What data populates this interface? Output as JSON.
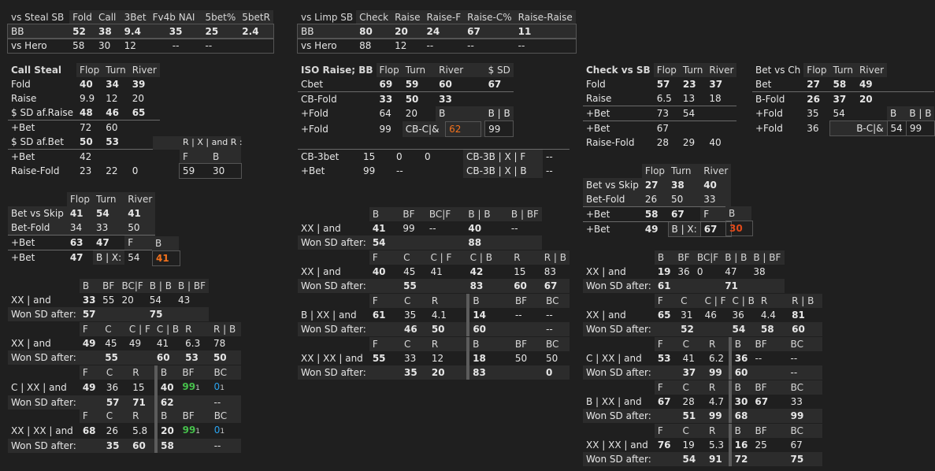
{
  "top_left": {
    "headers": [
      "vs Steal SB",
      "Fold",
      "Call",
      "3Bet",
      "Fv4b NAI",
      "5bet%",
      "5betR"
    ],
    "bb": {
      "label": "BB",
      "fold": "52",
      "call": "38",
      "threebet": "9.4",
      "fv4b": "35",
      "fivebet": "25",
      "fivebetr": "2.4"
    },
    "hero": {
      "label": "vs Hero",
      "fold": "58",
      "call": "30",
      "threebet": "12",
      "fv4b": "--",
      "fivebet": "--"
    }
  },
  "top_mid": {
    "headers": [
      "vs Limp SB",
      "Check",
      "Raise",
      "Raise-F",
      "Raise-C%",
      "Raise-Raise"
    ],
    "bb": {
      "label": "BB",
      "check": "80",
      "raise": "20",
      "raisef": "24",
      "raisec": "67",
      "raiseraise": "11"
    },
    "hero": {
      "label": "vs Hero",
      "check": "88",
      "raise": "12",
      "raisef": "--",
      "raisec": "--",
      "raiseraise": "--"
    }
  },
  "call_steal": {
    "title": "Call Steal",
    "h": [
      "Flop",
      "Turn",
      "River"
    ],
    "fold": {
      "l": "Fold",
      "v": [
        "40",
        "34",
        "39"
      ]
    },
    "raise": {
      "l": "Raise",
      "v": [
        "9.9",
        "12",
        "20"
      ]
    },
    "sd_raise": {
      "l": "$ SD af.Raise",
      "v": [
        "48",
        "46",
        "65"
      ]
    },
    "bet1": {
      "l": "+Bet",
      "v": [
        "72",
        "60"
      ]
    },
    "sd_bet": {
      "l": "$ SD af.Bet",
      "v": [
        "50",
        "53"
      ]
    },
    "rx": {
      "l": "R | X | and R :",
      "h": [
        "F",
        "B"
      ],
      "v": [
        "59",
        "30"
      ]
    },
    "bet2": {
      "l": "+Bet",
      "v": [
        "42"
      ]
    },
    "raise_fold": {
      "l": "Raise-Fold",
      "v": [
        "23",
        "22",
        "0"
      ]
    }
  },
  "skip_left": {
    "h": [
      "Flop",
      "Turn",
      "River"
    ],
    "bvs": {
      "l": "Bet vs Skip",
      "v": [
        "41",
        "54",
        "41"
      ]
    },
    "bf": {
      "l": "Bet-Fold",
      "v": [
        "34",
        "33",
        "50"
      ]
    },
    "bet1": {
      "l": "+Bet",
      "v": [
        "63",
        "47"
      ],
      "h": [
        "F",
        "B"
      ]
    },
    "bet2": {
      "l": "+Bet",
      "v": [
        "47"
      ],
      "bx": "B | X:",
      "bxv": [
        "54",
        "41"
      ]
    }
  },
  "xx_left": {
    "g1": {
      "h": [
        "B",
        "BF",
        "BC|F",
        "B | B",
        "B | BF"
      ],
      "l1": "XX | and",
      "l2": "Won SD after:",
      "r1": [
        "33",
        "55",
        "20",
        "54",
        "43"
      ],
      "r2": [
        "57",
        "",
        "",
        "75"
      ]
    },
    "g2": {
      "h": [
        "F",
        "C",
        "C | F",
        "C | B",
        "R",
        "R | B"
      ],
      "l1": "XX | and",
      "l2": "Won SD after:",
      "r1": [
        "49",
        "45",
        "49",
        "41",
        "6.3",
        "78"
      ],
      "r2": [
        "",
        "55",
        "",
        "60",
        "53",
        "50"
      ]
    },
    "g3": {
      "h": [
        "F",
        "C",
        "R",
        "B",
        "BF",
        "BC"
      ],
      "l1": "C | XX | and",
      "l2": "Won SD after:",
      "r1": [
        "49",
        "36",
        "15",
        "40",
        "99",
        "0"
      ],
      "s1": [
        "1",
        "1"
      ],
      "r2": [
        "",
        "57",
        "71",
        "62",
        "",
        "--"
      ]
    },
    "g4": {
      "h": [
        "F",
        "C",
        "R",
        "B",
        "BF",
        "BC"
      ],
      "l1": "XX | XX | and",
      "l2": "Won SD after:",
      "r1": [
        "68",
        "26",
        "5.8",
        "20",
        "99",
        "0"
      ],
      "s1": [
        "1",
        "1"
      ],
      "r2": [
        "",
        "35",
        "60",
        "58",
        "",
        "--"
      ]
    }
  },
  "iso": {
    "title": "ISO Raise; BB",
    "h": [
      "Flop",
      "Turn",
      "River",
      "$ SD"
    ],
    "cbet": {
      "l": "Cbet",
      "v": [
        "69",
        "59",
        "60",
        "67"
      ]
    },
    "cbf": {
      "l": "CB-Fold",
      "v": [
        "33",
        "50",
        "33"
      ]
    },
    "fold1": {
      "l": "+Fold",
      "v": [
        "64",
        "20"
      ],
      "h": [
        "B",
        "B | B"
      ]
    },
    "fold2": {
      "l": "+Fold",
      "v": [
        "99"
      ],
      "cbl": "CB-C|&",
      "cbv": [
        "62",
        "99"
      ]
    },
    "cb3": {
      "l": "CB-3bet",
      "v": [
        "15",
        "0",
        "0"
      ],
      "r1l": "CB-3B | X | F",
      "r1v": "--"
    },
    "bet": {
      "l": "+Bet",
      "v": [
        "99",
        "--"
      ],
      "r2l": "CB-3B | X | B",
      "r2v": "--"
    }
  },
  "xx_mid": {
    "g1": {
      "h": [
        "B",
        "BF",
        "BC|F",
        "B | B",
        "B | BF"
      ],
      "l1": "XX | and",
      "l2": "Won SD after:",
      "r1": [
        "41",
        "99",
        "--",
        "40",
        "--"
      ],
      "r2": [
        "54",
        "",
        "",
        "88"
      ]
    },
    "g2": {
      "h": [
        "F",
        "C",
        "C | F",
        "C | B",
        "R",
        "R | B"
      ],
      "l1": "XX | and",
      "l2": "Won SD after:",
      "r1": [
        "40",
        "45",
        "41",
        "42",
        "15",
        "83"
      ],
      "r2": [
        "",
        "55",
        "",
        "83",
        "60",
        "67"
      ]
    },
    "g3": {
      "h": [
        "F",
        "C",
        "R",
        "B",
        "BF",
        "BC"
      ],
      "l1": "B | XX | and",
      "l2": "Won SD after:",
      "r1": [
        "61",
        "35",
        "4.1",
        "14",
        "--",
        "--"
      ],
      "r2": [
        "",
        "46",
        "50",
        "60",
        "",
        "--"
      ]
    },
    "g4": {
      "h": [
        "F",
        "C",
        "R",
        "B",
        "BF",
        "BC"
      ],
      "l1": "XX | XX | and",
      "l2": "Won SD after:",
      "r1": [
        "55",
        "33",
        "12",
        "18",
        "50",
        "50"
      ],
      "r2": [
        "",
        "35",
        "20",
        "83",
        "",
        "0"
      ]
    }
  },
  "check_sb": {
    "title": "Check vs SB",
    "h": [
      "Flop",
      "Turn",
      "River"
    ],
    "fold": {
      "l": "Fold",
      "v": [
        "57",
        "23",
        "37"
      ]
    },
    "raise": {
      "l": "Raise",
      "v": [
        "6.5",
        "13",
        "18"
      ]
    },
    "bet1": {
      "l": "+Bet",
      "v": [
        "73",
        "54"
      ]
    },
    "bet2": {
      "l": "+Bet",
      "v": [
        "67"
      ]
    },
    "rf": {
      "l": "Raise-Fold",
      "v": [
        "28",
        "29",
        "40"
      ]
    }
  },
  "bet_ch": {
    "h": [
      "Bet vs Ch",
      "Flop",
      "Turn",
      "River"
    ],
    "bet": {
      "l": "Bet",
      "v": [
        "27",
        "58",
        "49"
      ]
    },
    "bf": {
      "l": "B-Fold",
      "v": [
        "26",
        "37",
        "20"
      ]
    },
    "fold1": {
      "l": "+Fold",
      "v": [
        "35",
        "54"
      ],
      "h": [
        "B",
        "B | B"
      ]
    },
    "fold2": {
      "l": "+Fold",
      "v": [
        "36"
      ],
      "cbl": "B-C|&",
      "cbv": [
        "54",
        "99"
      ]
    }
  },
  "skip_right": {
    "h": [
      "Flop",
      "Turn",
      "River"
    ],
    "bvs": {
      "l": "Bet vs Skip",
      "v": [
        "27",
        "38",
        "40"
      ]
    },
    "bf": {
      "l": "Bet-Fold",
      "v": [
        "26",
        "50",
        "33"
      ]
    },
    "bet1": {
      "l": "+Bet",
      "v": [
        "58",
        "67"
      ],
      "h": [
        "F",
        "B"
      ]
    },
    "bet2": {
      "l": "+Bet",
      "v": [
        "49"
      ],
      "bx": "B | X:",
      "bxv": [
        "67",
        "30"
      ]
    }
  },
  "xx_right": {
    "g1": {
      "h": [
        "B",
        "BF",
        "BC|F",
        "B | B",
        "B | BF"
      ],
      "l1": "XX | and",
      "l2": "Won SD after:",
      "r1": [
        "19",
        "36",
        "0",
        "47",
        "38"
      ],
      "r2": [
        "61",
        "",
        "",
        "71"
      ]
    },
    "g2": {
      "h": [
        "F",
        "C",
        "C | F",
        "C | B",
        "R",
        "R | B"
      ],
      "l1": "XX | and",
      "l2": "Won SD after:",
      "r1": [
        "65",
        "31",
        "46",
        "36",
        "4.4",
        "81"
      ],
      "r2": [
        "",
        "52",
        "",
        "54",
        "58",
        "60"
      ]
    },
    "g3": {
      "h": [
        "F",
        "C",
        "R",
        "B",
        "BF",
        "BC"
      ],
      "l1": "C | XX | and",
      "l2": "Won SD after:",
      "r1": [
        "53",
        "41",
        "6.2",
        "36",
        "--",
        "--"
      ],
      "r2": [
        "",
        "37",
        "99",
        "60",
        "",
        "--"
      ]
    },
    "g4": {
      "h": [
        "F",
        "C",
        "R",
        "B",
        "BF",
        "BC"
      ],
      "l1": "B | XX | and",
      "l2": "Won SD after:",
      "r1": [
        "67",
        "28",
        "4.7",
        "30",
        "67",
        "33"
      ],
      "r2": [
        "",
        "51",
        "99",
        "68",
        "",
        "99"
      ]
    },
    "g5": {
      "h": [
        "F",
        "C",
        "R",
        "B",
        "BF",
        "BC"
      ],
      "l1": "XX | XX | and",
      "l2": "Won SD after:",
      "r1": [
        "76",
        "19",
        "5.3",
        "16",
        "25",
        "67"
      ],
      "r2": [
        "",
        "54",
        "91",
        "72",
        "",
        "75"
      ]
    }
  }
}
